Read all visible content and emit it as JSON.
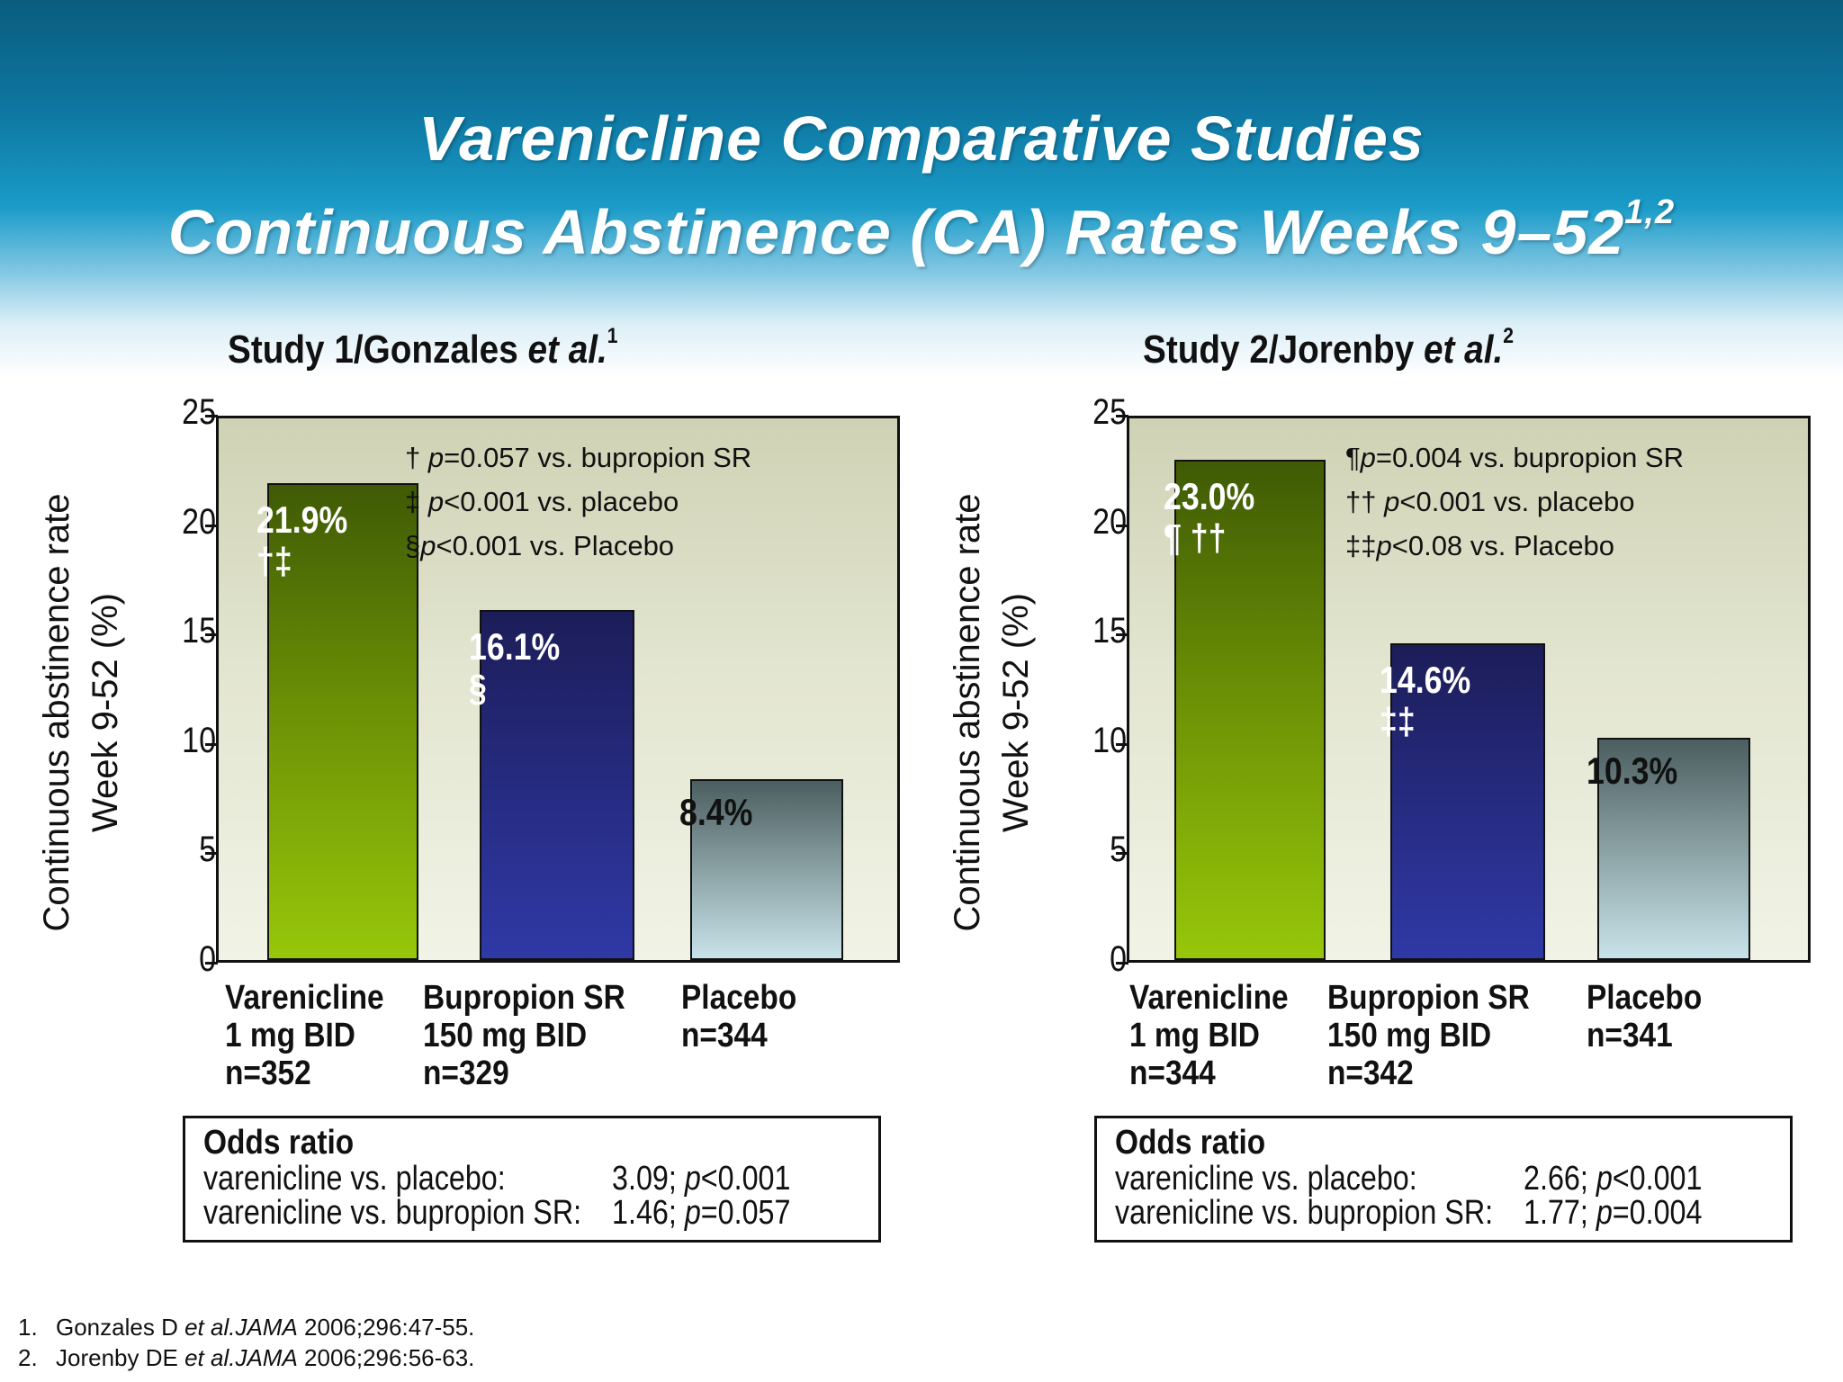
{
  "title_line1": "Varenicline Comparative Studies",
  "title_line2": "Continuous Abstinence (CA) Rates Weeks 9–52",
  "title_sup": "1,2",
  "chart_data": [
    {
      "type": "bar",
      "title": "Study 1/Gonzales et al.",
      "title_main": "Study 1/Gonzales ",
      "title_italic": "et al.",
      "title_sup": "1",
      "ylabel_line1": "Continuous abstinence rate",
      "ylabel_line2": "Week 9-52 (%)",
      "ylim": [
        0,
        25
      ],
      "yticks": [
        "0",
        "5",
        "10",
        "15",
        "20",
        "25"
      ],
      "categories": [
        [
          "Varenicline",
          "1 mg BID",
          "n=352"
        ],
        [
          "Bupropion SR",
          "150 mg BID",
          "n=329"
        ],
        [
          "Placebo",
          "n=344"
        ]
      ],
      "values": [
        21.9,
        16.1,
        8.4
      ],
      "value_labels": [
        "21.9%",
        "16.1%",
        "8.4%"
      ],
      "symbols": [
        "†‡",
        "§",
        ""
      ],
      "colors": [
        "#6a8e05",
        "#262b80",
        "#8aa1a4"
      ],
      "notes": [
        {
          "sym": "† ",
          "p": "p",
          "rest": "=0.057 vs. bupropion SR"
        },
        {
          "sym": "‡ ",
          "p": "p",
          "rest": "<0.001 vs. placebo"
        },
        {
          "sym": "§",
          "p": "p",
          "rest": "<0.001 vs. Placebo"
        }
      ],
      "odds_ratio": {
        "title": "Odds ratio",
        "rows": [
          {
            "label": "varenicline vs. placebo:",
            "value": "3.09; ",
            "p": "p",
            "pval": "<0.001"
          },
          {
            "label": "varenicline vs. bupropion SR:",
            "value": "1.46; ",
            "p": "p",
            "pval": "=0.057"
          }
        ]
      }
    },
    {
      "type": "bar",
      "title": "Study 2/Jorenby et al.",
      "title_main": "Study 2/Jorenby ",
      "title_italic": "et al.",
      "title_sup": "2",
      "ylabel_line1": "Continuous abstinence rate",
      "ylabel_line2": "Week 9-52 (%)",
      "ylim": [
        0,
        25
      ],
      "yticks": [
        "0",
        "5",
        "10",
        "15",
        "20",
        "25"
      ],
      "categories": [
        [
          "Varenicline",
          "1 mg BID",
          "n=344"
        ],
        [
          "Bupropion SR",
          "150 mg BID",
          "n=342"
        ],
        [
          "Placebo",
          "n=341"
        ]
      ],
      "values": [
        23.0,
        14.6,
        10.3
      ],
      "value_labels": [
        "23.0%",
        "14.6%",
        "10.3%"
      ],
      "symbols": [
        "¶ ††",
        "‡‡",
        ""
      ],
      "colors": [
        "#6a8e05",
        "#262b80",
        "#8aa1a4"
      ],
      "notes": [
        {
          "sym": "¶",
          "p": "p",
          "rest": "=0.004 vs. bupropion SR"
        },
        {
          "sym": "†† ",
          "p": "p",
          "rest": "<0.001 vs. placebo"
        },
        {
          "sym": "‡‡",
          "p": "p",
          "rest": "<0.08 vs. Placebo"
        }
      ],
      "odds_ratio": {
        "title": "Odds ratio",
        "rows": [
          {
            "label": "varenicline vs. placebo:",
            "value": "2.66; ",
            "p": "p",
            "pval": "<0.001"
          },
          {
            "label": "varenicline vs. bupropion SR:",
            "value": "1.77; ",
            "p": "p",
            "pval": "=0.004"
          }
        ]
      }
    }
  ],
  "references": [
    {
      "num": "1.",
      "authors": "Gonzales D ",
      "etal": "et al.",
      "journal": "JAMA",
      "rest": " 2006;296:47-55."
    },
    {
      "num": "2.",
      "authors": "Jorenby DE ",
      "etal": "et al.",
      "journal": "JAMA",
      "rest": " 2006;296:56-63."
    }
  ]
}
